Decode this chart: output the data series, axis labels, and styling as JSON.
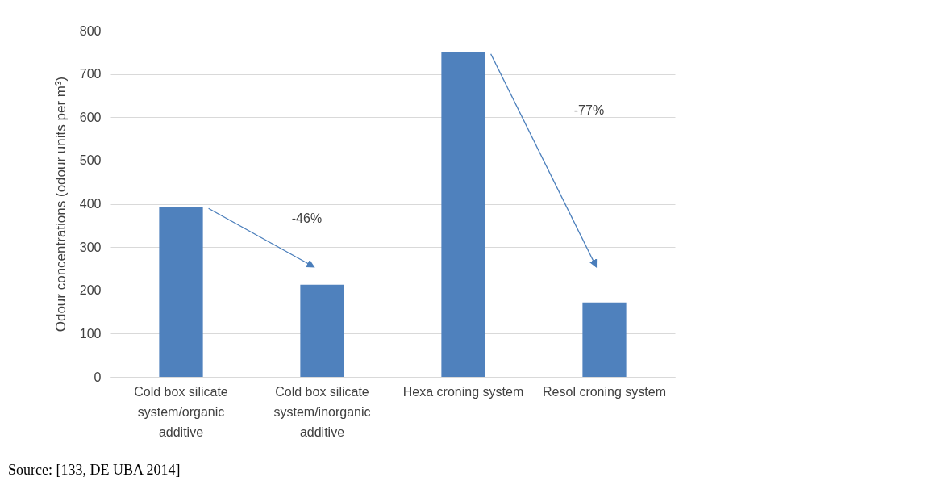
{
  "chart_data": {
    "type": "bar",
    "ylabel": "Odour concentrations (odour units per m³)",
    "categories": [
      "Cold box silicate system/organic additive",
      "Cold box silicate system/inorganic additive",
      "Hexa croning system",
      "Resol croning system"
    ],
    "values": [
      393,
      213,
      750,
      172
    ],
    "color": "#4f81bd",
    "ylim": [
      0,
      800
    ],
    "yticks": [
      0,
      100,
      200,
      300,
      400,
      500,
      600,
      700,
      800
    ],
    "grid": "y",
    "annotations": [
      "-46%",
      "-77%",
      "Source: [133, DE UBA 2014]"
    ]
  }
}
